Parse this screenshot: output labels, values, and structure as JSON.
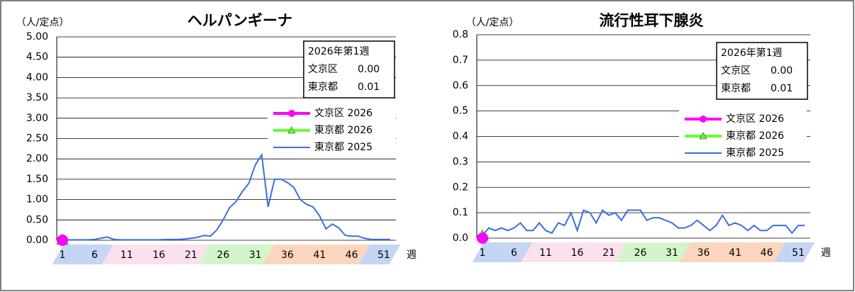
{
  "chart_data": [
    {
      "type": "line",
      "title": "ヘルパンギーナ",
      "y_label": "（人/定点）",
      "x_label": "週",
      "x": [
        1,
        2,
        3,
        4,
        5,
        6,
        7,
        8,
        9,
        10,
        11,
        12,
        13,
        14,
        15,
        16,
        17,
        18,
        19,
        20,
        21,
        22,
        23,
        24,
        25,
        26,
        27,
        28,
        29,
        30,
        31,
        32,
        33,
        34,
        35,
        36,
        37,
        38,
        39,
        40,
        41,
        42,
        43,
        44,
        45,
        46,
        47,
        48,
        49,
        50,
        51,
        52
      ],
      "xticks": [
        1,
        6,
        11,
        16,
        21,
        26,
        31,
        36,
        41,
        46,
        51
      ],
      "ylim": [
        0,
        5
      ],
      "yticks": [
        {
          "value": 0,
          "label": "0.00"
        },
        {
          "value": 0.5,
          "label": "0.50"
        },
        {
          "value": 1,
          "label": "1.00"
        },
        {
          "value": 1.5,
          "label": "1.50"
        },
        {
          "value": 2,
          "label": "2.00"
        },
        {
          "value": 2.5,
          "label": "2.50"
        },
        {
          "value": 3,
          "label": "3.00"
        },
        {
          "value": 3.5,
          "label": "3.50"
        },
        {
          "value": 4,
          "label": "4.00"
        },
        {
          "value": 4.5,
          "label": "4.50"
        },
        {
          "value": 5,
          "label": "5.00"
        }
      ],
      "grid": true,
      "info": {
        "title": "2026年第1週",
        "rows": [
          {
            "label": "文京区",
            "value": "0.00"
          },
          {
            "label": "東京都",
            "value": "0.01"
          }
        ]
      },
      "series": [
        {
          "name": "文京区 2026",
          "color": "#ff00ff",
          "marker": "circle",
          "values": [
            0,
            null,
            null,
            null,
            null,
            null,
            null,
            null,
            null,
            null,
            null,
            null,
            null,
            null,
            null,
            null,
            null,
            null,
            null,
            null,
            null,
            null,
            null,
            null,
            null,
            null,
            null,
            null,
            null,
            null,
            null,
            null,
            null,
            null,
            null,
            null,
            null,
            null,
            null,
            null,
            null,
            null,
            null,
            null,
            null,
            null,
            null,
            null,
            null,
            null,
            null,
            null
          ]
        },
        {
          "name": "東京都 2026",
          "color": "#66ff33",
          "marker": "triangle",
          "values": [
            0.01,
            null,
            null,
            null,
            null,
            null,
            null,
            null,
            null,
            null,
            null,
            null,
            null,
            null,
            null,
            null,
            null,
            null,
            null,
            null,
            null,
            null,
            null,
            null,
            null,
            null,
            null,
            null,
            null,
            null,
            null,
            null,
            null,
            null,
            null,
            null,
            null,
            null,
            null,
            null,
            null,
            null,
            null,
            null,
            null,
            null,
            null,
            null,
            null,
            null,
            null,
            null
          ]
        },
        {
          "name": "東京都 2025",
          "color": "#3a6fe0",
          "marker": "none",
          "values": [
            0.01,
            0.01,
            0.01,
            0.01,
            0.01,
            0.02,
            0.05,
            0.08,
            0.02,
            0.01,
            0.01,
            0.01,
            0.01,
            0.01,
            0.01,
            0.01,
            0.02,
            0.02,
            0.02,
            0.03,
            0.05,
            0.07,
            0.12,
            0.1,
            0.25,
            0.5,
            0.8,
            0.95,
            1.2,
            1.4,
            1.85,
            2.1,
            0.82,
            1.5,
            1.5,
            1.42,
            1.3,
            1.0,
            0.88,
            0.82,
            0.6,
            0.28,
            0.4,
            0.3,
            0.12,
            0.1,
            0.1,
            0.05,
            0.02,
            0.02,
            0.02,
            0.02
          ]
        }
      ]
    },
    {
      "type": "line",
      "title": "流行性耳下腺炎",
      "y_label": "（人/定点）",
      "x_label": "週",
      "x": [
        1,
        2,
        3,
        4,
        5,
        6,
        7,
        8,
        9,
        10,
        11,
        12,
        13,
        14,
        15,
        16,
        17,
        18,
        19,
        20,
        21,
        22,
        23,
        24,
        25,
        26,
        27,
        28,
        29,
        30,
        31,
        32,
        33,
        34,
        35,
        36,
        37,
        38,
        39,
        40,
        41,
        42,
        43,
        44,
        45,
        46,
        47,
        48,
        49,
        50,
        51,
        52
      ],
      "xticks": [
        1,
        6,
        11,
        16,
        21,
        26,
        31,
        36,
        41,
        46,
        51
      ],
      "ylim": [
        0,
        0.8
      ],
      "yticks": [
        {
          "value": 0,
          "label": "0.0"
        },
        0.1,
        0.2,
        0.3,
        0.4,
        0.5,
        0.6,
        0.7,
        0.8
      ],
      "grid": true,
      "info": {
        "title": "2026年第1週",
        "rows": [
          {
            "label": "文京区",
            "value": "0.00"
          },
          {
            "label": "東京都",
            "value": "0.01"
          }
        ]
      },
      "series": [
        {
          "name": "文京区 2026",
          "color": "#ff00ff",
          "marker": "circle",
          "values": [
            0,
            null,
            null,
            null,
            null,
            null,
            null,
            null,
            null,
            null,
            null,
            null,
            null,
            null,
            null,
            null,
            null,
            null,
            null,
            null,
            null,
            null,
            null,
            null,
            null,
            null,
            null,
            null,
            null,
            null,
            null,
            null,
            null,
            null,
            null,
            null,
            null,
            null,
            null,
            null,
            null,
            null,
            null,
            null,
            null,
            null,
            null,
            null,
            null,
            null,
            null,
            null
          ]
        },
        {
          "name": "東京都 2026",
          "color": "#66ff33",
          "marker": "triangle",
          "values": [
            0.01,
            null,
            null,
            null,
            null,
            null,
            null,
            null,
            null,
            null,
            null,
            null,
            null,
            null,
            null,
            null,
            null,
            null,
            null,
            null,
            null,
            null,
            null,
            null,
            null,
            null,
            null,
            null,
            null,
            null,
            null,
            null,
            null,
            null,
            null,
            null,
            null,
            null,
            null,
            null,
            null,
            null,
            null,
            null,
            null,
            null,
            null,
            null,
            null,
            null,
            null,
            null
          ]
        },
        {
          "name": "東京都 2025",
          "color": "#3a6fe0",
          "marker": "none",
          "values": [
            0.01,
            0.04,
            0.03,
            0.04,
            0.03,
            0.04,
            0.06,
            0.03,
            0.03,
            0.06,
            0.03,
            0.02,
            0.06,
            0.05,
            0.1,
            0.03,
            0.11,
            0.1,
            0.06,
            0.11,
            0.09,
            0.1,
            0.07,
            0.11,
            0.11,
            0.11,
            0.07,
            0.08,
            0.08,
            0.07,
            0.06,
            0.04,
            0.04,
            0.05,
            0.07,
            0.05,
            0.03,
            0.05,
            0.09,
            0.05,
            0.06,
            0.05,
            0.03,
            0.05,
            0.03,
            0.03,
            0.05,
            0.05,
            0.05,
            0.02,
            0.05,
            0.05
          ]
        }
      ]
    }
  ]
}
